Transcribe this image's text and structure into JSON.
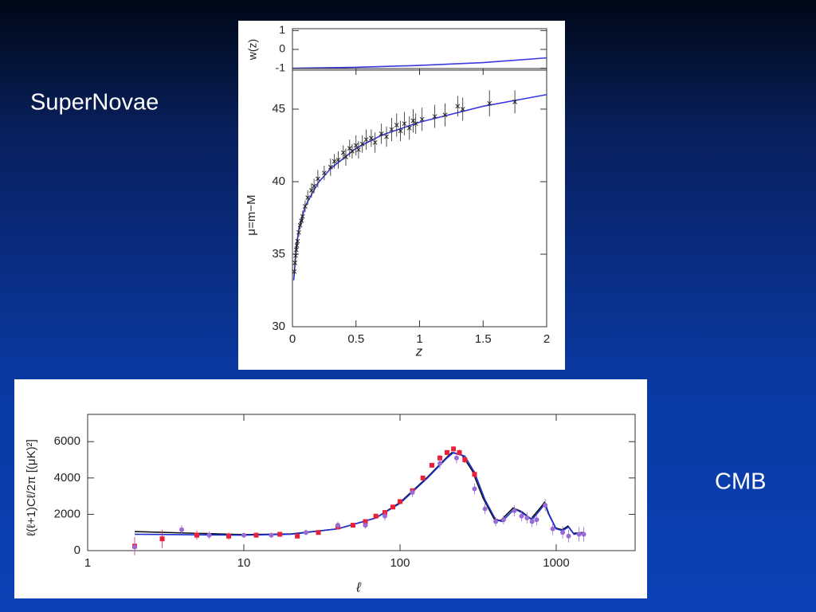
{
  "slide": {
    "labels": [
      "SuperNovae",
      "CMB"
    ]
  },
  "chart_data": [
    {
      "type": "line",
      "ylabel": "w(z)",
      "xlim": [
        0,
        2
      ],
      "ylim": [
        -1.1,
        1.1
      ],
      "yticks": [
        1,
        0,
        -1
      ],
      "series": [
        {
          "mode": "line",
          "color": "#3a3adf",
          "x": [
            0,
            0.5,
            1,
            1.5,
            2
          ],
          "values": [
            -1,
            -0.95,
            -0.85,
            -0.7,
            -0.45
          ]
        }
      ]
    },
    {
      "type": "scatter",
      "xlabel": "z",
      "ylabel": "μ=m−M",
      "xlim": [
        0,
        2
      ],
      "ylim": [
        30,
        47.8
      ],
      "xticks": [
        0,
        0.5,
        1,
        1.5,
        2
      ],
      "yticks": [
        30,
        35,
        40,
        45
      ],
      "series": [
        {
          "mode": "line",
          "color": "#3a3adf",
          "x": [
            0.01,
            0.03,
            0.05,
            0.1,
            0.2,
            0.3,
            0.5,
            0.7,
            1,
            1.5,
            2
          ],
          "values": [
            33.2,
            35.5,
            36.7,
            38.3,
            39.9,
            40.9,
            42.3,
            43.2,
            44.1,
            45.2,
            46
          ]
        },
        {
          "mode": "markers",
          "marker": "cross",
          "color": "#222222",
          "x": [
            0.015,
            0.02,
            0.025,
            0.03,
            0.035,
            0.04,
            0.05,
            0.06,
            0.07,
            0.08,
            0.1,
            0.12,
            0.15,
            0.17,
            0.2,
            0.25,
            0.3,
            0.33,
            0.36,
            0.4,
            0.42,
            0.45,
            0.47,
            0.5,
            0.52,
            0.55,
            0.58,
            0.62,
            0.65,
            0.7,
            0.74,
            0.78,
            0.82,
            0.85,
            0.88,
            0.92,
            0.95,
            0.97,
            1.02,
            1.12,
            1.2,
            1.3,
            1.34,
            1.55,
            1.75
          ],
          "values": [
            33.8,
            34.4,
            34.9,
            35.3,
            35.6,
            35.9,
            36.5,
            37,
            37.3,
            37.6,
            38.3,
            38.9,
            39.4,
            39.7,
            40.2,
            40.6,
            41,
            41.4,
            41.5,
            42,
            41.7,
            42.3,
            42.1,
            42.5,
            42.2,
            42.6,
            42.9,
            43,
            42.7,
            43.3,
            43.1,
            43.6,
            43.9,
            43.5,
            44,
            43.7,
            44.2,
            44,
            44.3,
            44.5,
            44.6,
            45.2,
            45,
            45.4,
            45.5
          ],
          "errors": [
            0.3,
            0.3,
            0.3,
            0.3,
            0.3,
            0.3,
            0.3,
            0.3,
            0.3,
            0.4,
            0.4,
            0.5,
            0.5,
            0.5,
            0.6,
            0.5,
            0.6,
            0.5,
            0.6,
            0.5,
            0.6,
            0.6,
            0.5,
            0.7,
            0.6,
            0.6,
            0.7,
            0.6,
            0.7,
            0.7,
            0.7,
            0.8,
            0.8,
            0.7,
            0.8,
            0.8,
            0.8,
            0.7,
            0.8,
            0.8,
            0.8,
            0.7,
            0.8,
            0.9,
            0.8
          ]
        }
      ]
    },
    {
      "type": "scatter",
      "xlog": true,
      "xlabel": "ℓ",
      "ylabel": "ℓ(ℓ+1)Cℓ/2π [(μK)²]",
      "xlim": [
        1,
        3200
      ],
      "ylim": [
        0,
        7500
      ],
      "xticks": [
        1,
        10,
        100,
        1000
      ],
      "yticks": [
        0,
        2000,
        4000,
        6000
      ],
      "series": [
        {
          "mode": "line",
          "color": "#111111",
          "x": [
            2,
            10,
            20,
            40,
            70,
            100,
            150,
            200,
            215,
            250,
            290,
            340,
            400,
            440,
            530,
            600,
            690,
            790,
            840,
            890,
            990,
            1090,
            1190,
            1290,
            1500
          ],
          "values": [
            1050,
            880,
            920,
            1200,
            1800,
            2650,
            4050,
            5150,
            5400,
            5250,
            4400,
            2900,
            1750,
            1650,
            2350,
            2150,
            1750,
            2350,
            2650,
            2050,
            1250,
            1150,
            1350,
            950,
            1000
          ]
        },
        {
          "mode": "line",
          "color": "#1c2fd6",
          "x": [
            2,
            10,
            20,
            40,
            70,
            100,
            150,
            200,
            220,
            260,
            300,
            350,
            410,
            450,
            540,
            600,
            700,
            800,
            850,
            900,
            1000,
            1100,
            1200,
            1300,
            1500
          ],
          "values": [
            900,
            850,
            900,
            1200,
            1800,
            2600,
            4000,
            5100,
            5400,
            5200,
            4300,
            2800,
            1700,
            1600,
            2300,
            2100,
            1700,
            2300,
            2600,
            2000,
            1200,
            1100,
            1300,
            900,
            1000
          ]
        },
        {
          "mode": "markers",
          "marker": "square",
          "color": "#e8203a",
          "x": [
            2,
            3,
            5,
            8,
            12,
            17,
            22,
            30,
            40,
            50,
            60,
            70,
            80,
            90,
            100,
            120,
            140,
            160,
            180,
            200,
            220,
            240,
            260,
            300
          ],
          "values": [
            250,
            650,
            850,
            800,
            850,
            900,
            800,
            1000,
            1300,
            1400,
            1600,
            1900,
            2100,
            2400,
            2700,
            3300,
            4000,
            4700,
            5100,
            5400,
            5600,
            5400,
            5000,
            4200
          ],
          "errors": [
            500,
            500,
            250,
            200,
            150,
            120,
            120,
            100,
            100,
            100,
            100,
            100,
            100,
            100,
            100,
            120,
            120,
            130,
            150,
            150,
            150,
            160,
            180,
            200
          ]
        },
        {
          "mode": "markers",
          "marker": "circle",
          "color": "#9a6ad6",
          "x": [
            2,
            4,
            6,
            10,
            15,
            25,
            40,
            60,
            80,
            120,
            180,
            230,
            300,
            350,
            410,
            460,
            540,
            600,
            650,
            700,
            750,
            850,
            950,
            1100,
            1200,
            1400,
            1500
          ],
          "values": [
            200,
            1150,
            850,
            850,
            850,
            1000,
            1400,
            1400,
            1900,
            3200,
            4800,
            5100,
            3400,
            2300,
            1600,
            1700,
            2200,
            1900,
            1800,
            1600,
            1700,
            2500,
            1200,
            1000,
            800,
            900,
            900
          ],
          "errors": [
            300,
            250,
            200,
            150,
            150,
            150,
            200,
            200,
            250,
            250,
            300,
            300,
            300,
            300,
            250,
            250,
            300,
            300,
            300,
            300,
            300,
            350,
            350,
            350,
            350,
            400,
            400
          ]
        }
      ]
    }
  ]
}
